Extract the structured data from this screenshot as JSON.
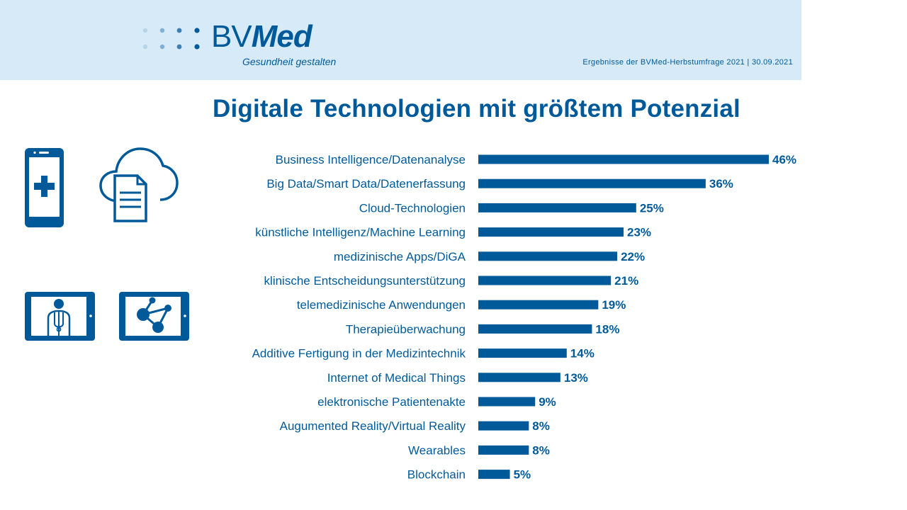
{
  "header": {
    "logo_text_bv": "BV",
    "logo_text_med": "Med",
    "slogan": "Gesundheit gestalten",
    "note": "Ergebnisse der BVMed-Herbstumfrage 2021 | 30.09.2021"
  },
  "colors": {
    "accent": "#005a9a",
    "header_bg": "#d6ebf7",
    "bar": "#005a9a"
  },
  "icons": [
    "smartphone-medical-icon",
    "cloud-document-icon",
    "tablet-doctor-icon",
    "tablet-network-icon"
  ],
  "chart_data": {
    "type": "bar",
    "orientation": "horizontal",
    "title": "Digitale Technologien mit größtem Potenzial",
    "categories": [
      "Business Intelligence/Datenanalyse",
      "Big Data/Smart Data/Datenerfassung",
      "Cloud-Technologien",
      "künstliche Intelligenz/Machine Learning",
      "medizinische Apps/DiGA",
      "klinische Entscheidungsunterstützung",
      "telemedizinische Anwendungen",
      "Therapieüberwachung",
      "Additive Fertigung in der Medizintechnik",
      "Internet of Medical Things",
      "elektronische Patientenakte",
      "Augumented Reality/Virtual Reality",
      "Wearables",
      "Blockchain"
    ],
    "values": [
      46,
      36,
      25,
      23,
      22,
      21,
      19,
      18,
      14,
      13,
      9,
      8,
      8,
      5
    ],
    "value_labels": [
      "46%",
      "36%",
      "25%",
      "23%",
      "22%",
      "21%",
      "19%",
      "18%",
      "14%",
      "13%",
      "9%",
      "8%",
      "8%",
      "5%"
    ],
    "unit": "%",
    "xlim": [
      0,
      46
    ],
    "grid": false,
    "legend": "none"
  }
}
